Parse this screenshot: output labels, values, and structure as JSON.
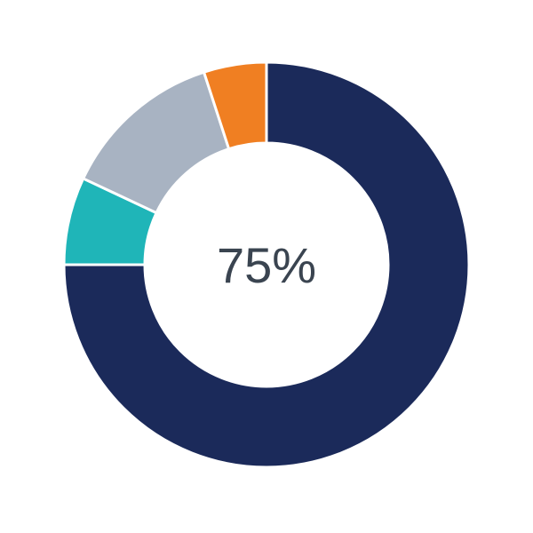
{
  "chart_data": {
    "type": "pie",
    "donut": true,
    "center_label": "75%",
    "values": [
      75,
      7,
      13,
      5
    ],
    "colors": [
      "#1b2a5a",
      "#1fb5b8",
      "#a8b3c2",
      "#f07f22"
    ],
    "start_angle": "12 o'clock",
    "direction": "clockwise"
  }
}
